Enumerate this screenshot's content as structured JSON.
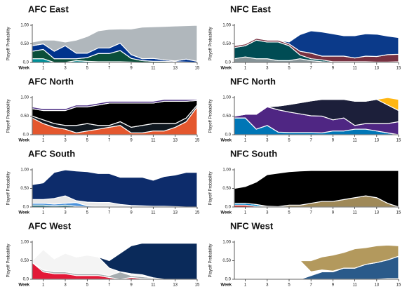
{
  "chart_data": [
    {
      "type": "area",
      "title": "AFC East",
      "ylabel": "Playoff Probability",
      "xlabel": "Week",
      "x": [
        0,
        1,
        2,
        3,
        4,
        5,
        6,
        7,
        8,
        9,
        10,
        11,
        12,
        13,
        14,
        15
      ],
      "xlim": [
        0,
        15
      ],
      "ylim": [
        0,
        1
      ],
      "xticks": [
        1,
        3,
        5,
        7,
        9,
        11,
        13,
        15
      ],
      "yticks": [
        {
          "value": 0,
          "label": "0.0"
        },
        {
          "value": 0.5,
          "label": "0.50"
        },
        {
          "value": 1,
          "label": "1.00"
        }
      ],
      "series": [
        {
          "color": "#008e97",
          "values": [
            0.1,
            0.1,
            0,
            0,
            0.05,
            0.03,
            0.02,
            0.02,
            0.02,
            0.01,
            0,
            0,
            0,
            0,
            0,
            0
          ]
        },
        {
          "color": "#0b4f3a",
          "values": [
            0.2,
            0.25,
            0.1,
            0.1,
            0.05,
            0.1,
            0.22,
            0.22,
            0.3,
            0.1,
            0.05,
            0.03,
            0.03,
            0.02,
            0.01,
            0
          ]
        },
        {
          "color": "#00338d",
          "values": [
            0.15,
            0.15,
            0.2,
            0.35,
            0.15,
            0.12,
            0.15,
            0.15,
            0.2,
            0.1,
            0.05,
            0.08,
            0.04,
            0.02,
            0.08,
            0.03
          ]
        },
        {
          "color": "#b0b7bc",
          "values": [
            0.1,
            0.1,
            0.3,
            0.1,
            0.35,
            0.45,
            0.46,
            0.5,
            0.38,
            0.69,
            0.85,
            0.85,
            0.9,
            0.94,
            0.9,
            0.97
          ]
        }
      ]
    },
    {
      "type": "area",
      "title": "NFC East",
      "ylabel": "Playoff Probability",
      "xlabel": "Week",
      "x": [
        0,
        1,
        2,
        3,
        4,
        5,
        6,
        7,
        8,
        9,
        10,
        11,
        12,
        13,
        14,
        15
      ],
      "xlim": [
        0,
        15
      ],
      "ylim": [
        0,
        1
      ],
      "xticks": [
        1,
        3,
        5,
        7,
        9,
        11,
        13,
        15
      ],
      "yticks": [
        {
          "value": 0,
          "label": "0.0"
        },
        {
          "value": 0.5,
          "label": "0.50"
        },
        {
          "value": 1,
          "label": "1.00"
        }
      ],
      "series": [
        {
          "color": "#869397",
          "values": [
            0.1,
            0.15,
            0.1,
            0.1,
            0.05,
            0.05,
            0.1,
            0.05,
            0.02,
            0,
            0,
            0,
            0,
            0,
            0,
            0
          ]
        },
        {
          "color": "#004c54",
          "values": [
            0.3,
            0.3,
            0.5,
            0.45,
            0.5,
            0.4,
            0.1,
            0.05,
            0.05,
            0.02,
            0.02,
            0.02,
            0.02,
            0.01,
            0.01,
            0.02
          ]
        },
        {
          "color": "#773141",
          "values": [
            0.05,
            0.05,
            0.05,
            0.05,
            0.05,
            0.05,
            0.1,
            0.15,
            0.1,
            0.15,
            0.15,
            0.1,
            0.15,
            0.15,
            0.2,
            0.2
          ]
        },
        {
          "color": "#0b3a8a",
          "values": [
            0,
            0,
            0,
            0,
            0,
            0.05,
            0.45,
            0.6,
            0.65,
            0.6,
            0.55,
            0.6,
            0.6,
            0.6,
            0.5,
            0.45
          ]
        }
      ]
    },
    {
      "type": "area",
      "title": "AFC North",
      "ylabel": "Playoff Probability",
      "xlabel": "Week",
      "x": [
        0,
        1,
        2,
        3,
        4,
        5,
        6,
        7,
        8,
        9,
        10,
        11,
        12,
        13,
        14,
        15
      ],
      "xlim": [
        0,
        15
      ],
      "ylim": [
        0,
        1
      ],
      "xticks": [
        1,
        3,
        5,
        7,
        9,
        11,
        13,
        15
      ],
      "yticks": [
        {
          "value": 0,
          "label": "0.0"
        },
        {
          "value": 0.5,
          "label": "0.50"
        },
        {
          "value": 1,
          "label": "1.00"
        }
      ],
      "series": [
        {
          "color": "#e4572e",
          "values": [
            0.45,
            0.3,
            0.2,
            0.15,
            0.05,
            0.1,
            0.15,
            0.2,
            0.25,
            0.05,
            0.05,
            0.1,
            0.1,
            0.2,
            0.35,
            0.75
          ]
        },
        {
          "color": "#101820",
          "values": [
            0.05,
            0.1,
            0.1,
            0.1,
            0.2,
            0.2,
            0.1,
            0.05,
            0.1,
            0.15,
            0.2,
            0.2,
            0.2,
            0.1,
            0.1,
            0.05
          ]
        },
        {
          "color": "#000000",
          "values": [
            0.2,
            0.25,
            0.35,
            0.4,
            0.5,
            0.45,
            0.55,
            0.6,
            0.5,
            0.65,
            0.6,
            0.55,
            0.6,
            0.6,
            0.45,
            0.12
          ]
        },
        {
          "color": "#4b2e83",
          "values": [
            0.05,
            0.05,
            0.05,
            0.05,
            0.05,
            0.05,
            0.05,
            0.05,
            0.05,
            0.05,
            0.05,
            0.05,
            0.05,
            0.05,
            0.05,
            0.03
          ]
        }
      ]
    },
    {
      "type": "area",
      "title": "NFC North",
      "ylabel": "Playoff Probability",
      "xlabel": "Week",
      "x": [
        0,
        1,
        2,
        3,
        4,
        5,
        6,
        7,
        8,
        9,
        10,
        11,
        12,
        13,
        14,
        15
      ],
      "xlim": [
        0,
        15
      ],
      "ylim": [
        0,
        1
      ],
      "xticks": [
        1,
        3,
        5,
        7,
        9,
        11,
        13,
        15
      ],
      "yticks": [
        {
          "value": 0,
          "label": "0.0"
        },
        {
          "value": 0.5,
          "label": "0.50"
        },
        {
          "value": 1,
          "label": "1.00"
        }
      ],
      "series": [
        {
          "color": "#0076b6",
          "values": [
            0.45,
            0.45,
            0.15,
            0.25,
            0.07,
            0.06,
            0.06,
            0.06,
            0.05,
            0.1,
            0.1,
            0.15,
            0.15,
            0.1,
            0.05,
            0
          ]
        },
        {
          "color": "#4f2683",
          "values": [
            0.05,
            0.1,
            0.4,
            0.5,
            0.6,
            0.55,
            0.5,
            0.45,
            0.45,
            0.3,
            0.35,
            0.1,
            0.15,
            0.2,
            0.25,
            0.35
          ]
        },
        {
          "color": "#1c1f3a",
          "values": [
            0,
            0,
            0,
            0,
            0.1,
            0.2,
            0.3,
            0.4,
            0.45,
            0.55,
            0.5,
            0.65,
            0.6,
            0.65,
            0.5,
            0.3
          ]
        },
        {
          "color": "#ffb612",
          "values": [
            0,
            0,
            0,
            0,
            0,
            0,
            0,
            0,
            0,
            0,
            0,
            0,
            0,
            0,
            0.2,
            0.3
          ]
        }
      ]
    },
    {
      "type": "area",
      "title": "AFC South",
      "ylabel": "Playoff Probability",
      "xlabel": "Week",
      "x": [
        0,
        1,
        2,
        3,
        4,
        5,
        6,
        7,
        8,
        9,
        10,
        11,
        12,
        13,
        14,
        15
      ],
      "xlim": [
        0,
        15
      ],
      "ylim": [
        0,
        1
      ],
      "xticks": [
        1,
        3,
        5,
        7,
        9,
        11,
        13,
        15
      ],
      "yticks": [
        {
          "value": 0,
          "label": "0.0"
        },
        {
          "value": 0.5,
          "label": "0.50"
        },
        {
          "value": 1,
          "label": "1.00"
        }
      ],
      "series": [
        {
          "color": "#006778",
          "values": [
            0.05,
            0.05,
            0.03,
            0.05,
            0.02,
            0,
            0,
            0,
            0,
            0,
            0,
            0,
            0,
            0,
            0,
            0
          ]
        },
        {
          "color": "#4b92db",
          "values": [
            0.05,
            0.05,
            0.05,
            0.05,
            0.1,
            0.03,
            0.02,
            0.02,
            0.02,
            0.02,
            0.01,
            0,
            0,
            0,
            0,
            0
          ]
        },
        {
          "color": "#e8e8e8",
          "values": [
            0.1,
            0.1,
            0.15,
            0.2,
            0.05,
            0.1,
            0.1,
            0.1,
            0.05,
            0.02,
            0.02,
            0.02,
            0.02,
            0.01,
            0,
            0
          ]
        },
        {
          "color": "#0d2c6b",
          "values": [
            0.4,
            0.45,
            0.7,
            0.7,
            0.8,
            0.82,
            0.78,
            0.78,
            0.73,
            0.76,
            0.77,
            0.7,
            0.8,
            0.85,
            0.93,
            0.93
          ]
        }
      ]
    },
    {
      "type": "area",
      "title": "NFC South",
      "ylabel": "Playoff Probability",
      "xlabel": "Week",
      "x": [
        0,
        1,
        2,
        3,
        4,
        5,
        6,
        7,
        8,
        9,
        10,
        11,
        12,
        13,
        14,
        15
      ],
      "xlim": [
        0,
        15
      ],
      "ylim": [
        0,
        1
      ],
      "xticks": [
        1,
        3,
        5,
        7,
        9,
        11,
        13,
        15
      ],
      "yticks": [
        {
          "value": 0,
          "label": "0.0"
        },
        {
          "value": 0.5,
          "label": "0.50"
        },
        {
          "value": 1,
          "label": "1.00"
        }
      ],
      "series": [
        {
          "color": "#d50a0a",
          "values": [
            0.05,
            0.05,
            0.02,
            0.02,
            0.01,
            0,
            0,
            0,
            0,
            0,
            0,
            0,
            0,
            0,
            0,
            0
          ]
        },
        {
          "color": "#0085ca",
          "values": [
            0.05,
            0.05,
            0.05,
            0,
            0,
            0,
            0,
            0,
            0,
            0,
            0,
            0,
            0,
            0,
            0,
            0
          ]
        },
        {
          "color": "#9f8958",
          "values": [
            0,
            0,
            0,
            0,
            0,
            0.05,
            0.05,
            0.1,
            0.15,
            0.15,
            0.2,
            0.25,
            0.3,
            0.25,
            0.1,
            0
          ]
        },
        {
          "color": "#000000",
          "values": [
            0.4,
            0.45,
            0.6,
            0.85,
            0.9,
            0.9,
            0.92,
            0.88,
            0.83,
            0.83,
            0.78,
            0.73,
            0.68,
            0.73,
            0.88,
            0.98
          ]
        }
      ]
    },
    {
      "type": "area",
      "title": "AFC West",
      "ylabel": "Playoff Probability",
      "xlabel": "Week",
      "x": [
        0,
        1,
        2,
        3,
        4,
        5,
        6,
        7,
        8,
        9,
        10,
        11,
        12,
        13,
        14,
        15
      ],
      "xlim": [
        0,
        15
      ],
      "ylim": [
        0,
        1
      ],
      "xticks": [
        1,
        3,
        5,
        7,
        9,
        11,
        13,
        15
      ],
      "yticks": [
        {
          "value": 0,
          "label": "0.0"
        },
        {
          "value": 0.5,
          "label": "0.50"
        },
        {
          "value": 1,
          "label": "1.00"
        }
      ],
      "series": [
        {
          "color": "#e31837",
          "values": [
            0.45,
            0.2,
            0.15,
            0.15,
            0.1,
            0.1,
            0.1,
            0.05,
            0,
            0.05,
            0.02,
            0.02,
            0,
            0,
            0,
            0
          ]
        },
        {
          "color": "#a5acaf",
          "values": [
            0,
            0.05,
            0.05,
            0.05,
            0.05,
            0.05,
            0.05,
            0.05,
            0.2,
            0.05,
            0.05,
            0.02,
            0,
            0,
            0,
            0
          ]
        },
        {
          "color": "#f4f4f4",
          "values": [
            0.05,
            0.55,
            0.35,
            0.5,
            0.45,
            0.5,
            0.45,
            0.2,
            0,
            0.05,
            0.05,
            0,
            0,
            0,
            0,
            0
          ]
        },
        {
          "color": "#0a2a5a",
          "values": [
            0,
            0,
            0,
            0,
            0,
            0,
            0,
            0.2,
            0.5,
            0.75,
            0.85,
            0.93,
            0.97,
            0.97,
            0.97,
            0.97
          ]
        }
      ]
    },
    {
      "type": "area",
      "title": "NFC West",
      "ylabel": "Playoff Probability",
      "xlabel": "Week",
      "x": [
        0,
        1,
        2,
        3,
        4,
        5,
        6,
        7,
        8,
        9,
        10,
        11,
        12,
        13,
        14,
        15
      ],
      "xlim": [
        0,
        15
      ],
      "ylim": [
        0,
        1
      ],
      "xticks": [
        1,
        3,
        5,
        7,
        9,
        11,
        13,
        15
      ],
      "yticks": [
        {
          "value": 0,
          "label": "0.0"
        },
        {
          "value": 0.5,
          "label": "0.50"
        },
        {
          "value": 1,
          "label": "1.00"
        }
      ],
      "series": [
        {
          "color": "#97233f",
          "values": [
            0,
            0,
            0.02,
            0,
            0,
            0,
            0,
            0,
            0,
            0,
            0,
            0,
            0,
            0,
            0.02,
            0.02
          ]
        },
        {
          "color": "#2a5a8a",
          "values": [
            0,
            0,
            0,
            0,
            0,
            0,
            0,
            0.1,
            0.2,
            0.2,
            0.3,
            0.3,
            0.4,
            0.45,
            0.5,
            0.6
          ]
        },
        {
          "color": "#ffffff",
          "values": [
            0.45,
            0.45,
            0.5,
            0.75,
            0.8,
            0.6,
            0.5,
            0.1,
            0.05,
            0.02,
            0,
            0,
            0,
            0,
            0,
            0
          ]
        },
        {
          "color": "#b3995d",
          "values": [
            0,
            0,
            0,
            0,
            0,
            0,
            0,
            0.3,
            0.35,
            0.43,
            0.42,
            0.52,
            0.45,
            0.45,
            0.4,
            0.28
          ]
        }
      ]
    }
  ]
}
